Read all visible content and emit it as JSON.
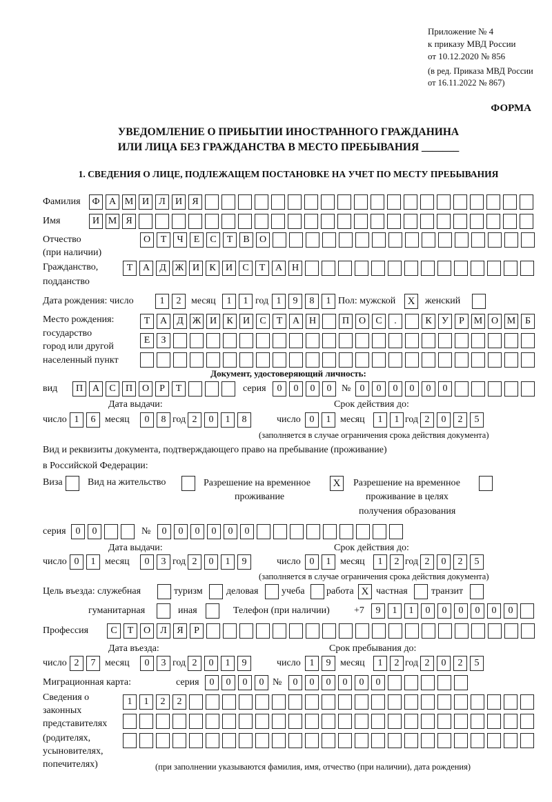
{
  "header": {
    "appendix": [
      "Приложение № 4",
      "к приказу МВД России",
      "от 10.12.2020 № 856"
    ],
    "amendment": [
      "(в ред. Приказа МВД России",
      "от 16.11.2022 № 867)"
    ],
    "form_label": "ФОРМА",
    "title": [
      "УВЕДОМЛЕНИЕ О ПРИБЫТИИ ИНОСТРАННОГО ГРАЖДАНИНА",
      "ИЛИ ЛИЦА БЕЗ ГРАЖДАНСТВА В МЕСТО ПРЕБЫВАНИЯ _______"
    ],
    "section1": "1. СВЕДЕНИЯ О ЛИЦЕ, ПОДЛЕЖАЩЕМ ПОСТАНОВКЕ НА УЧЕТ ПО МЕСТУ ПРЕБЫВАНИЯ"
  },
  "labels": {
    "surname": "Фамилия",
    "name": "Имя",
    "patronymic": [
      "Отчество",
      "(при наличии)"
    ],
    "citizenship": [
      "Гражданство,",
      "подданство"
    ],
    "birth_date": "Дата рождения:  число",
    "day": "число",
    "month": "месяц",
    "year": "год",
    "sex": "Пол: мужской",
    "female": "женский",
    "birthplace": [
      "Место рождения:",
      "государство",
      "город или другой",
      "населенный пункт"
    ],
    "id_doc": "Документ, удостоверяющий личность:",
    "kind": "вид",
    "series": "серия",
    "number": "№",
    "issue_date": "Дата выдачи:",
    "valid_until": "Срок действия до:",
    "valid_note": "(заполняется в случае ограничения срока действия документа)",
    "stay_doc": [
      "Вид и реквизиты документа, подтверждающего право на пребывание (проживание)",
      "в Российской Федерации:"
    ],
    "visa": "Виза",
    "residence_permit": "Вид на жительство",
    "temp_residence": [
      "Разрешение на временное",
      "проживание"
    ],
    "temp_residence_edu": [
      "Разрешение на временное",
      "проживание в целях",
      "получения образования"
    ],
    "purpose": "Цель въезда: служебная",
    "tourism": "туризм",
    "business": "деловая",
    "study": "учеба",
    "work": "работа",
    "private": "частная",
    "transit": "транзит",
    "humanitarian": "гуманитарная",
    "other": "иная",
    "phone": "Телефон (при наличии)",
    "phone_prefix": "+7",
    "profession": "Профессия",
    "entry_date": "Дата въезда:",
    "stay_until": "Срок пребывания до:",
    "migration_card": "Миграционная карта:",
    "representatives": [
      "Сведения о",
      "законных",
      "представителях",
      "(родителях,",
      "усыновителях,",
      "попечителях)"
    ],
    "representatives_note": "(при заполнении указываются фамилия, имя, отчество (при наличии), дата рождения)"
  },
  "values": {
    "surname": "ФАМИЛИЯ",
    "name": "ИМЯ",
    "patronymic": "ОТЧЕСТВО",
    "citizenship": "ТАДЖИКИСТАН",
    "birth": {
      "day": "12",
      "month": "11",
      "year": "1981"
    },
    "sex_male": "X",
    "sex_female": "",
    "birthplace": [
      "ТАДЖИКИСТАН ПОС. КУРМОМБ",
      "ЕЗ",
      ""
    ],
    "id_doc": {
      "kind": "ПАСПОРТ",
      "series": "0000",
      "number": "000000",
      "issue": {
        "day": "16",
        "month": "08",
        "year": "2018"
      },
      "valid": {
        "day": "01",
        "month": "11",
        "year": "2025"
      }
    },
    "stay_doc": {
      "visa": "",
      "residence_permit": "",
      "temp_residence": "X",
      "temp_residence_edu": "",
      "series": "00",
      "number": "000000",
      "issue": {
        "day": "01",
        "month": "03",
        "year": "2019"
      },
      "valid": {
        "day": "01",
        "month": "12",
        "year": "2025"
      }
    },
    "purpose": {
      "official": "",
      "tourism": "",
      "business": "",
      "study": "",
      "work": "X",
      "private": "",
      "transit": "",
      "humanitarian": "",
      "other": ""
    },
    "phone": "911000000",
    "profession": "СТОЛЯР",
    "entry": {
      "day": "27",
      "month": "03",
      "year": "2019"
    },
    "stay_until": {
      "day": "19",
      "month": "12",
      "year": "2025"
    },
    "migration_card": {
      "series": "0000",
      "number": "000000"
    },
    "representatives": [
      "1122",
      "",
      ""
    ]
  }
}
